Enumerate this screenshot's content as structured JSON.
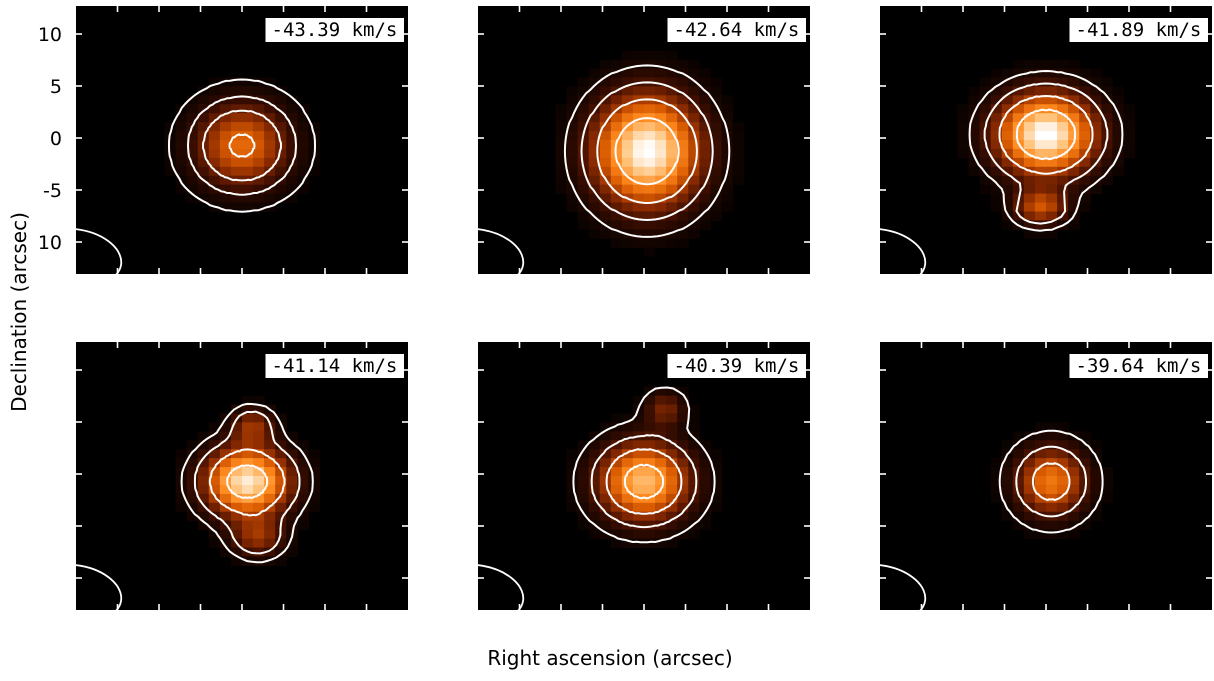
{
  "chart_data": {
    "type": "heatmap",
    "description_kind": "channel maps",
    "xlabel": "Right ascension (arcsec)",
    "ylabel": "Declination (arcsec)",
    "y_tick_labels": [
      "10",
      "5",
      "0",
      "-5",
      "10"
    ],
    "ylim": [
      -12,
      12
    ],
    "xlim": [
      -16,
      16
    ],
    "colormap": [
      "#000000",
      "#3a0d00",
      "#8a2a00",
      "#d85a00",
      "#ff8a1e",
      "#ffc27a",
      "#ffffff"
    ],
    "panels": [
      {
        "velocity_label": "-43.39 km/s",
        "velocity": -43.39,
        "peak": 0.55,
        "blobs": [
          {
            "x": 0.0,
            "y": -0.5,
            "sx": 6.2,
            "sy": 5.2,
            "amp": 1.0
          }
        ],
        "contours": [
          0.08,
          0.25,
          0.5,
          0.95
        ]
      },
      {
        "velocity_label": "-42.64 km/s",
        "velocity": -42.64,
        "peak": 1.0,
        "blobs": [
          {
            "x": 0.3,
            "y": -1.0,
            "sx": 7.0,
            "sy": 6.8,
            "amp": 1.0
          }
        ],
        "contours": [
          0.08,
          0.2,
          0.4,
          0.7
        ]
      },
      {
        "velocity_label": "-41.89 km/s",
        "velocity": -41.89,
        "peak": 1.0,
        "blobs": [
          {
            "x": 0.0,
            "y": 0.5,
            "sx": 6.5,
            "sy": 5.0,
            "amp": 1.0
          },
          {
            "x": -0.5,
            "y": -6.0,
            "sx": 3.5,
            "sy": 2.2,
            "amp": 0.45
          }
        ],
        "contours": [
          0.08,
          0.2,
          0.4,
          0.7
        ]
      },
      {
        "velocity_label": "-41.14 km/s",
        "velocity": -41.14,
        "peak": 0.95,
        "blobs": [
          {
            "x": 0.5,
            "y": -0.5,
            "sx": 5.6,
            "sy": 4.2,
            "amp": 1.0
          },
          {
            "x": 1.0,
            "y": 4.5,
            "sx": 2.8,
            "sy": 2.2,
            "amp": 0.35
          },
          {
            "x": 1.5,
            "y": -5.5,
            "sx": 3.5,
            "sy": 2.5,
            "amp": 0.35
          }
        ],
        "contours": [
          0.08,
          0.2,
          0.45,
          0.8
        ]
      },
      {
        "velocity_label": "-40.39 km/s",
        "velocity": -40.39,
        "peak": 0.8,
        "blobs": [
          {
            "x": 0.0,
            "y": -0.5,
            "sx": 6.0,
            "sy": 4.8,
            "amp": 1.0
          },
          {
            "x": 2.0,
            "y": 6.0,
            "sx": 2.6,
            "sy": 2.2,
            "amp": 0.35
          }
        ],
        "contours": [
          0.08,
          0.25,
          0.5,
          0.85
        ]
      },
      {
        "velocity_label": "-39.64 km/s",
        "velocity": -39.64,
        "peak": 0.6,
        "blobs": [
          {
            "x": 0.5,
            "y": -0.5,
            "sx": 4.6,
            "sy": 4.2,
            "amp": 1.0
          }
        ],
        "contours": [
          0.1,
          0.35,
          0.75
        ]
      }
    ],
    "beam": {
      "x": -16.0,
      "y": -10.5,
      "major": 8.0,
      "minor": 5.0,
      "angle_deg": -10
    },
    "contour_color": "#ffffff"
  }
}
